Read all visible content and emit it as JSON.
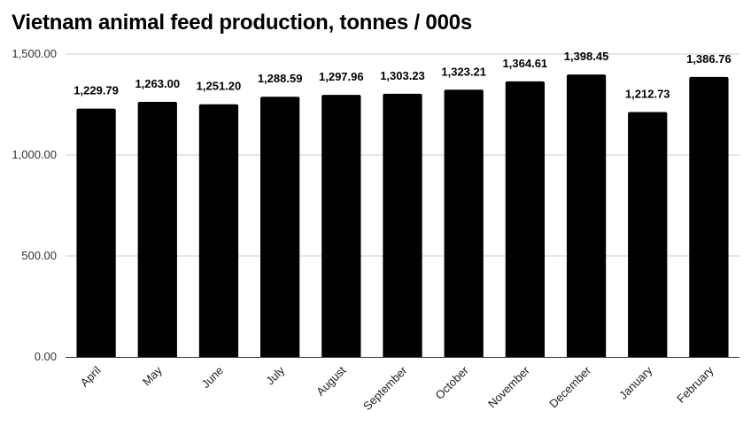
{
  "chart_data": {
    "type": "bar",
    "title": "Vietnam animal feed production, tonnes / 000s",
    "categories": [
      "April",
      "May",
      "June",
      "July",
      "August",
      "September",
      "October",
      "November",
      "December",
      "January",
      "February"
    ],
    "values": [
      1229.79,
      1263.0,
      1251.2,
      1288.59,
      1297.96,
      1303.23,
      1323.21,
      1364.61,
      1398.45,
      1212.73,
      1386.76
    ],
    "data_labels": [
      "1,229.79",
      "1,263.00",
      "1,251.20",
      "1,288.59",
      "1,297.96",
      "1,303.23",
      "1,323.21",
      "1,364.61",
      "1,398.45",
      "1,212.73",
      "1,386.76"
    ],
    "yticks": [
      0,
      500,
      1000,
      1500
    ],
    "ytick_labels": [
      "0.00",
      "500.00",
      "1,000.00",
      "1,500.00"
    ],
    "ylim": [
      0,
      1500
    ],
    "xlabel": "",
    "ylabel": "",
    "grid": true,
    "legend": false,
    "bar_color": "#000000",
    "grid_color": "#cccccc"
  }
}
